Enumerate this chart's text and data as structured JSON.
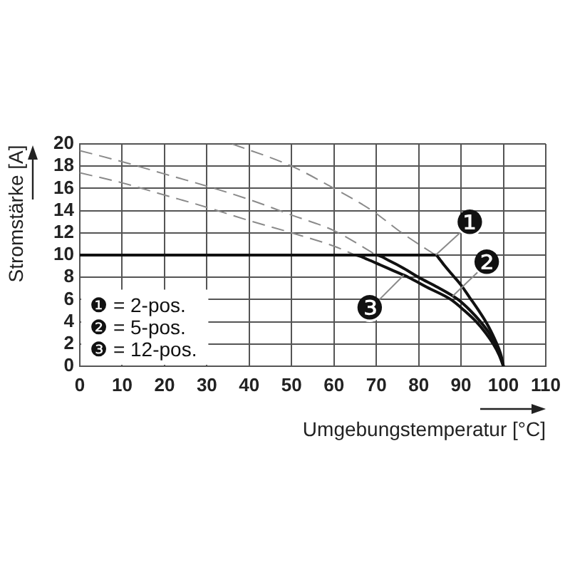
{
  "chart_data": {
    "type": "line",
    "xlabel": "Umgebungstemperatur [°C]",
    "ylabel": "Stromstärke [A]",
    "xlim": [
      0,
      110
    ],
    "xticks": [
      0,
      10,
      20,
      30,
      40,
      50,
      60,
      70,
      80,
      90,
      100,
      110
    ],
    "ylim": [
      0,
      20
    ],
    "yticks": [
      0,
      2,
      4,
      6,
      8,
      10,
      12,
      14,
      16,
      18,
      20
    ],
    "grid": true,
    "series": [
      {
        "color": "#111111",
        "line_style": "solid",
        "x": [
          0,
          84,
          85,
          86,
          88,
          90,
          92,
          94,
          96,
          97,
          98,
          99,
          99.5,
          100
        ],
        "values": [
          10,
          10,
          9.6,
          9.1,
          8.2,
          7.3,
          6.2,
          5.1,
          3.9,
          3.2,
          2.4,
          1.5,
          0.9,
          0
        ]
      },
      {
        "color": "#111111",
        "line_style": "solid",
        "x": [
          0,
          70,
          73,
          76.5,
          80,
          84.5,
          89.3,
          92.2,
          94.6,
          96.6,
          98.1,
          99.2,
          100
        ],
        "values": [
          10,
          10,
          9.5,
          8.8,
          8,
          7.1,
          6,
          5,
          4,
          3,
          2,
          1,
          0
        ]
      },
      {
        "color": "#111111",
        "line_style": "solid",
        "x": [
          0,
          65,
          68,
          71,
          74,
          77.6,
          82,
          87.6,
          90.8,
          93.6,
          95.8,
          97.6,
          99,
          100
        ],
        "values": [
          10,
          10,
          9.6,
          9.1,
          8.6,
          8,
          7.1,
          6,
          5,
          4,
          3,
          2,
          1,
          0
        ]
      },
      {
        "color": "#8a8a8a",
        "line_style": "dashed",
        "x": [
          36,
          50,
          60,
          69,
          76,
          84
        ],
        "values": [
          20,
          18,
          16,
          14,
          12,
          10
        ]
      },
      {
        "color": "#8a8a8a",
        "line_style": "dashed",
        "x": [
          0,
          10,
          20,
          30,
          40,
          50,
          60,
          70
        ],
        "values": [
          19.4,
          18.4,
          17.3,
          16.2,
          15,
          13.6,
          12.2,
          10
        ]
      },
      {
        "color": "#8a8a8a",
        "line_style": "dashed",
        "x": [
          0,
          10,
          20,
          30,
          40,
          50,
          60,
          65
        ],
        "values": [
          17.4,
          16.5,
          15.4,
          14.3,
          13.1,
          12,
          10.8,
          10
        ]
      }
    ],
    "annotations": [
      "❶ = 2-pos.",
      "❷ = 5-pos.",
      "❸ = 12-pos.",
      {
        "text": "❶",
        "x": 84,
        "y": 10
      },
      {
        "text": "❷",
        "x": 88,
        "y": 6.3
      },
      {
        "text": "❸",
        "x": 76.5,
        "y": 8.2
      }
    ]
  }
}
